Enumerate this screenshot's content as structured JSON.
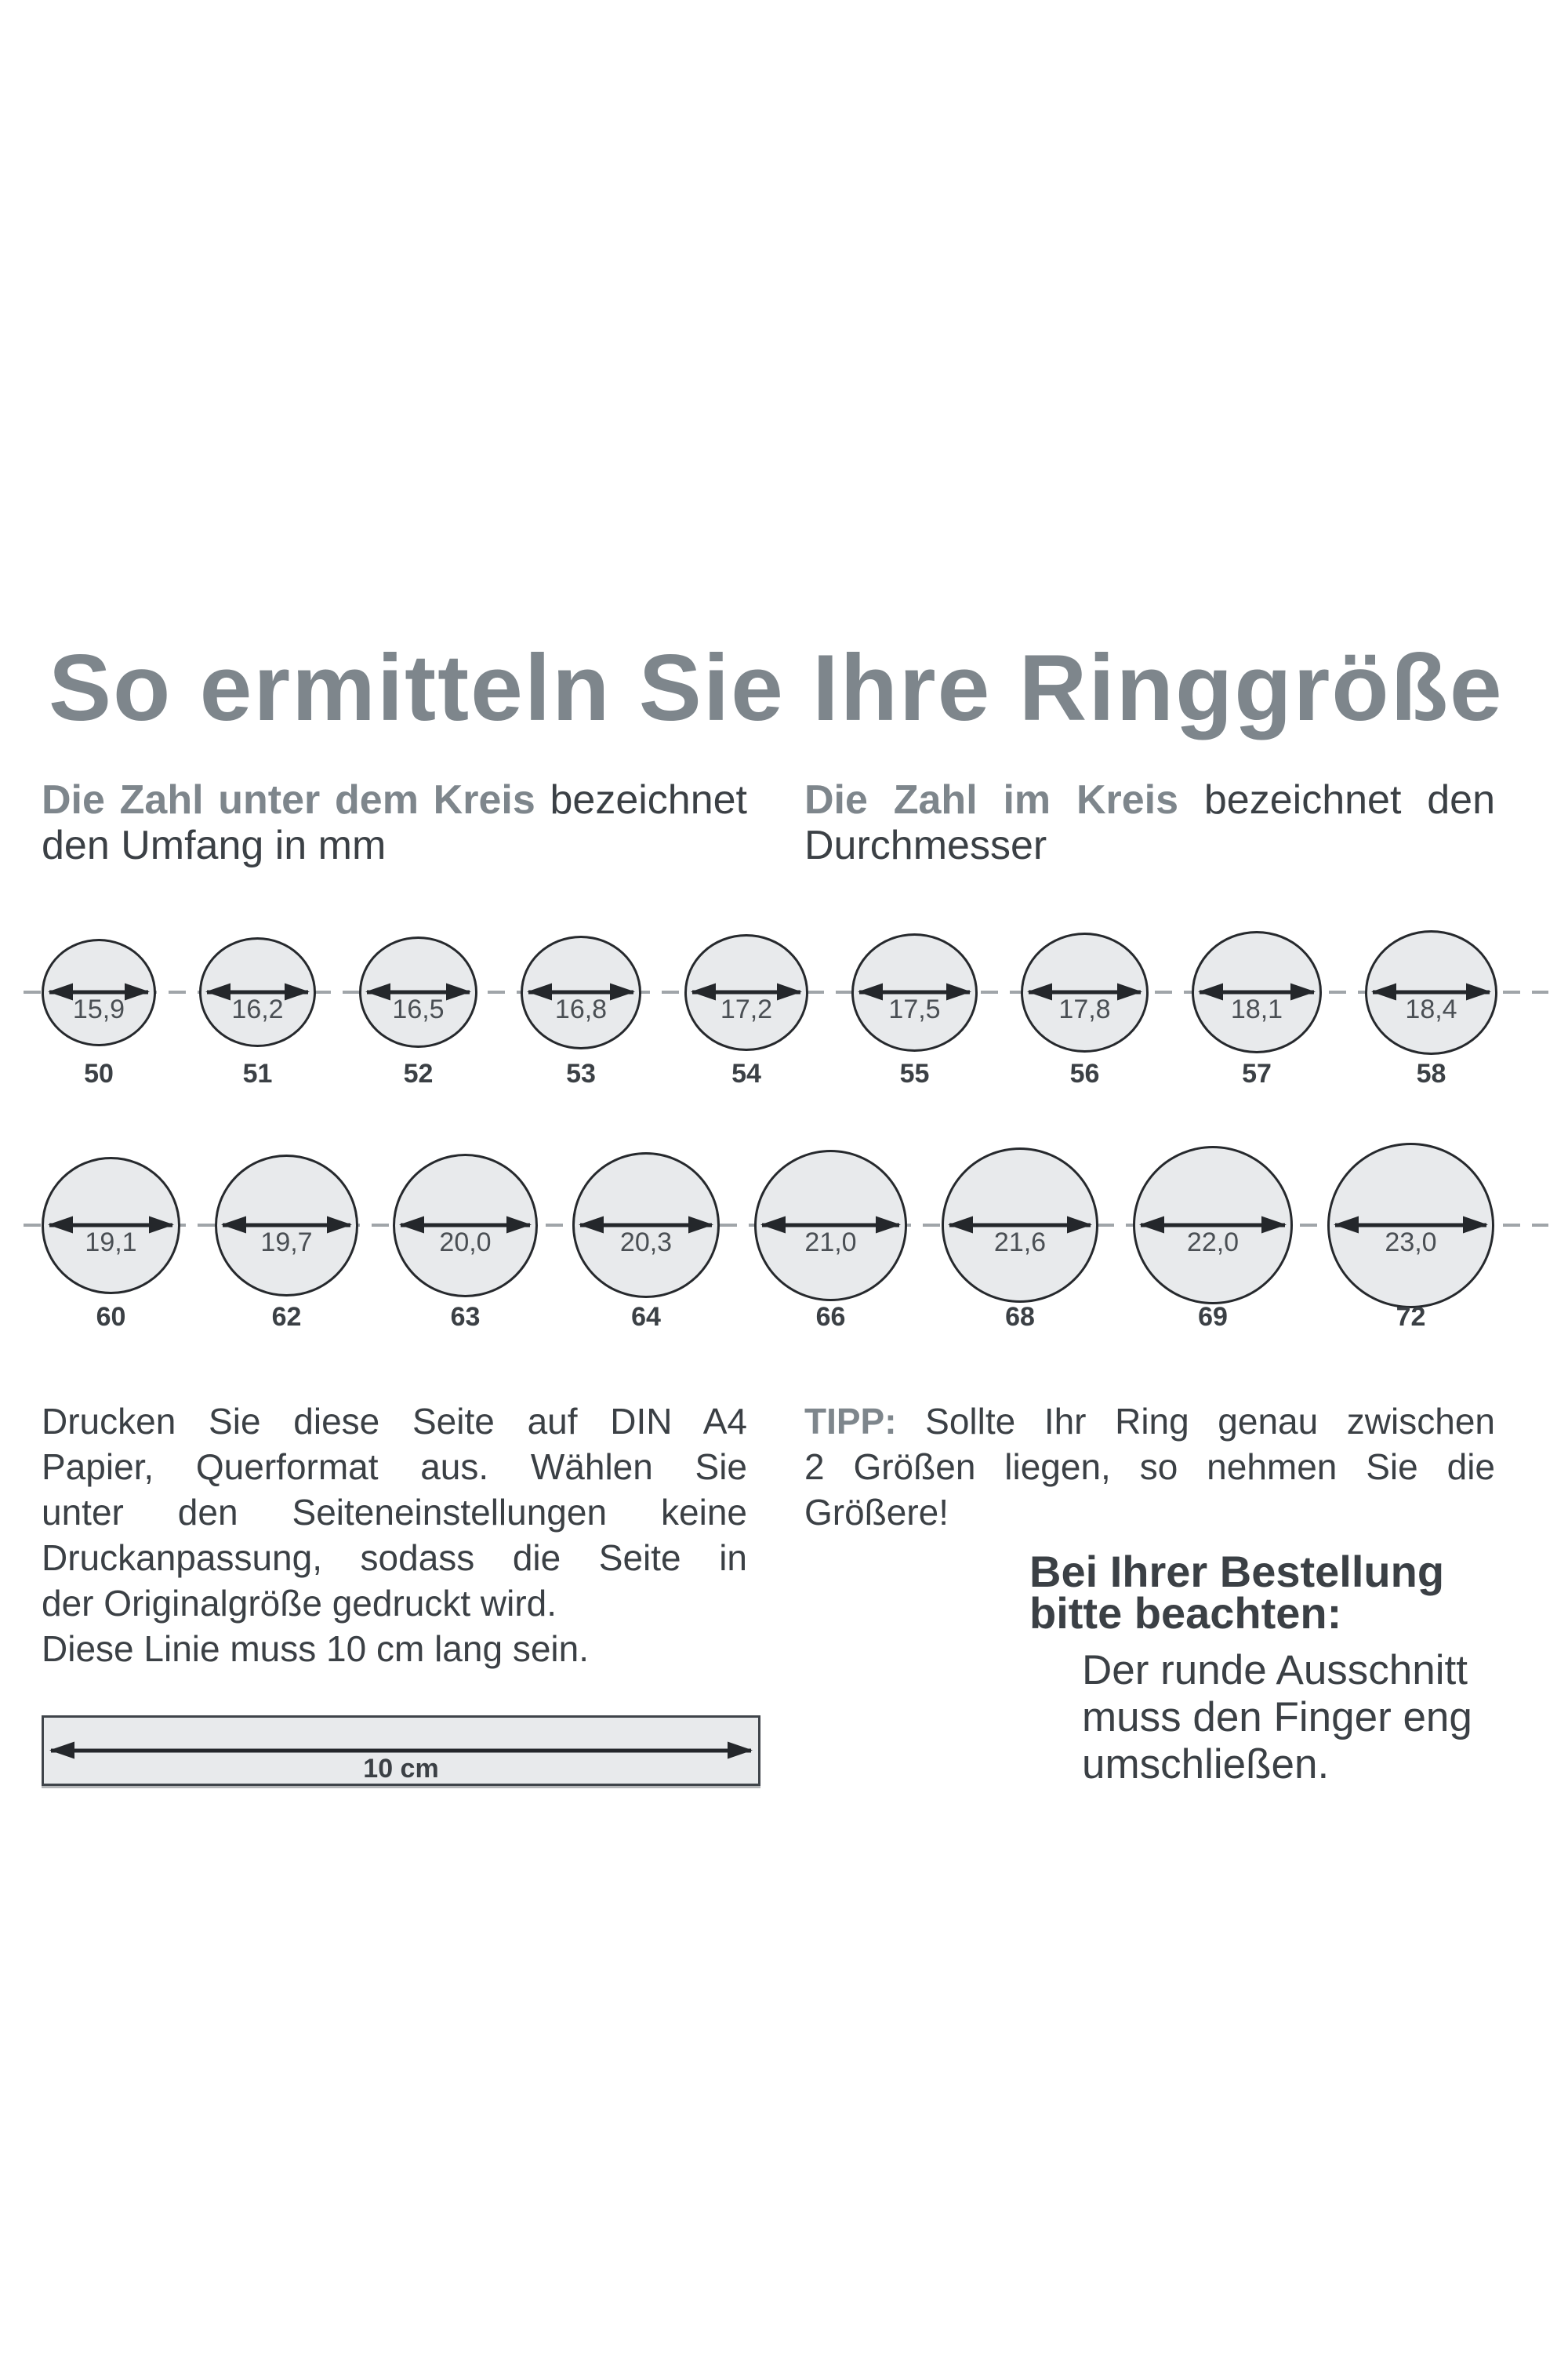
{
  "title": "So ermitteln Sie Ihre Ringgröße",
  "colors": {
    "accent_gray": "#7e868c",
    "text_dark": "#3b4045",
    "circle_fill": "#e8eaec",
    "circle_border": "#26292d",
    "dash_gray": "#a0a5a9"
  },
  "intro": {
    "left": {
      "lines": [
        {
          "j": true,
          "seg": [
            {
              "t": "Die Zahl unter dem Kreis",
              "c": "accent"
            },
            {
              "t": " bezeichnet",
              "c": "plain"
            }
          ]
        },
        {
          "j": false,
          "seg": [
            {
              "t": "den Umfang in mm",
              "c": "plain"
            }
          ]
        }
      ]
    },
    "right": {
      "lines": [
        {
          "j": true,
          "seg": [
            {
              "t": "Die Zahl im Kreis",
              "c": "accent"
            },
            {
              "t": " bezeichnet den",
              "c": "plain"
            }
          ]
        },
        {
          "j": false,
          "seg": [
            {
              "t": "Durchmesser",
              "c": "plain"
            }
          ]
        }
      ]
    }
  },
  "rows": {
    "row1": {
      "items": [
        {
          "diameter": "15,9",
          "size": "50"
        },
        {
          "diameter": "16,2",
          "size": "51"
        },
        {
          "diameter": "16,5",
          "size": "52"
        },
        {
          "diameter": "16,8",
          "size": "53"
        },
        {
          "diameter": "17,2",
          "size": "54"
        },
        {
          "diameter": "17,5",
          "size": "55"
        },
        {
          "diameter": "17,8",
          "size": "56"
        },
        {
          "diameter": "18,1",
          "size": "57"
        },
        {
          "diameter": "18,4",
          "size": "58"
        }
      ]
    },
    "row2": {
      "items": [
        {
          "diameter": "19,1",
          "size": "60"
        },
        {
          "diameter": "19,7",
          "size": "62"
        },
        {
          "diameter": "20,0",
          "size": "63"
        },
        {
          "diameter": "20,3",
          "size": "64"
        },
        {
          "diameter": "21,0",
          "size": "66"
        },
        {
          "diameter": "21,6",
          "size": "68"
        },
        {
          "diameter": "22,0",
          "size": "69"
        },
        {
          "diameter": "23,0",
          "size": "72"
        }
      ]
    }
  },
  "print_note": {
    "lines": [
      {
        "j": true,
        "seg": [
          {
            "t": "Drucken Sie diese Seite auf DIN A4",
            "c": "plain"
          }
        ]
      },
      {
        "j": true,
        "seg": [
          {
            "t": "Papier, Querformat aus. Wählen Sie",
            "c": "plain"
          }
        ]
      },
      {
        "j": true,
        "seg": [
          {
            "t": "unter den Seiteneinstellungen keine",
            "c": "plain"
          }
        ]
      },
      {
        "j": true,
        "seg": [
          {
            "t": "Druckanpassung, sodass die Seite in",
            "c": "plain"
          }
        ]
      },
      {
        "j": false,
        "seg": [
          {
            "t": "der Originalgröße gedruckt wird.",
            "c": "plain"
          }
        ]
      },
      {
        "j": false,
        "seg": [
          {
            "t": "Diese Linie muss 10 cm lang sein.",
            "c": "plain"
          }
        ]
      }
    ]
  },
  "ruler": {
    "label": "10 cm"
  },
  "tip": {
    "lines": [
      {
        "j": true,
        "seg": [
          {
            "t": "TIPP:",
            "c": "accent"
          },
          {
            "t": " Sollte Ihr Ring genau zwischen",
            "c": "plain"
          }
        ]
      },
      {
        "j": true,
        "seg": [
          {
            "t": "2 Größen liegen, so nehmen Sie die",
            "c": "plain"
          }
        ]
      },
      {
        "j": false,
        "seg": [
          {
            "t": "Größere!",
            "c": "plain"
          }
        ]
      }
    ]
  },
  "order_note": {
    "heading_lines": [
      "Bei Ihrer Bestellung",
      "bitte beachten:"
    ],
    "body_lines": [
      "Der runde Ausschnitt",
      "muss den Finger eng",
      "umschließen."
    ]
  }
}
